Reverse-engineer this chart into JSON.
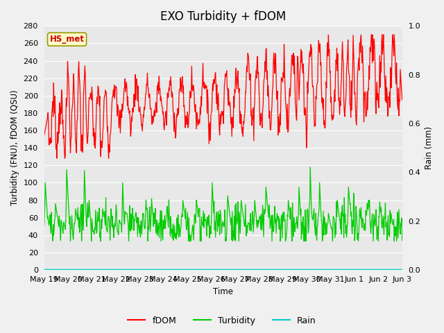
{
  "title": "EXO Turbidity + fDOM",
  "xlabel": "Time",
  "ylabel_left": "Turbidity (FNU), fDOM (QSU)",
  "ylabel_right": "Rain (mm)",
  "ylim_left": [
    0,
    280
  ],
  "ylim_right": [
    0,
    1.0
  ],
  "x_tick_labels": [
    "May 19",
    "May 20",
    "May 21",
    "May 22",
    "May 23",
    "May 24",
    "May 25",
    "May 26",
    "May 27",
    "May 28",
    "May 29",
    "May 30",
    "May 31",
    "Jun 1",
    "Jun 2",
    "Jun 3"
  ],
  "annotation_text": "HS_met",
  "annotation_color": "#cc0000",
  "annotation_bg": "#ffffcc",
  "annotation_border": "#999900",
  "fdom_color": "#ff0000",
  "turbidity_color": "#00cc00",
  "rain_color": "#00cccc",
  "plot_bg_color": "#e8e8e8",
  "fig_bg_color": "#f0f0f0",
  "grid_color": "#ffffff",
  "title_fontsize": 12,
  "label_fontsize": 8.5,
  "tick_fontsize": 8,
  "legend_fontsize": 9,
  "yticks_left": [
    0,
    20,
    40,
    60,
    80,
    100,
    120,
    140,
    160,
    180,
    200,
    220,
    240,
    260,
    280
  ],
  "yticks_right": [
    0.0,
    0.2,
    0.4,
    0.6,
    0.8,
    1.0
  ]
}
